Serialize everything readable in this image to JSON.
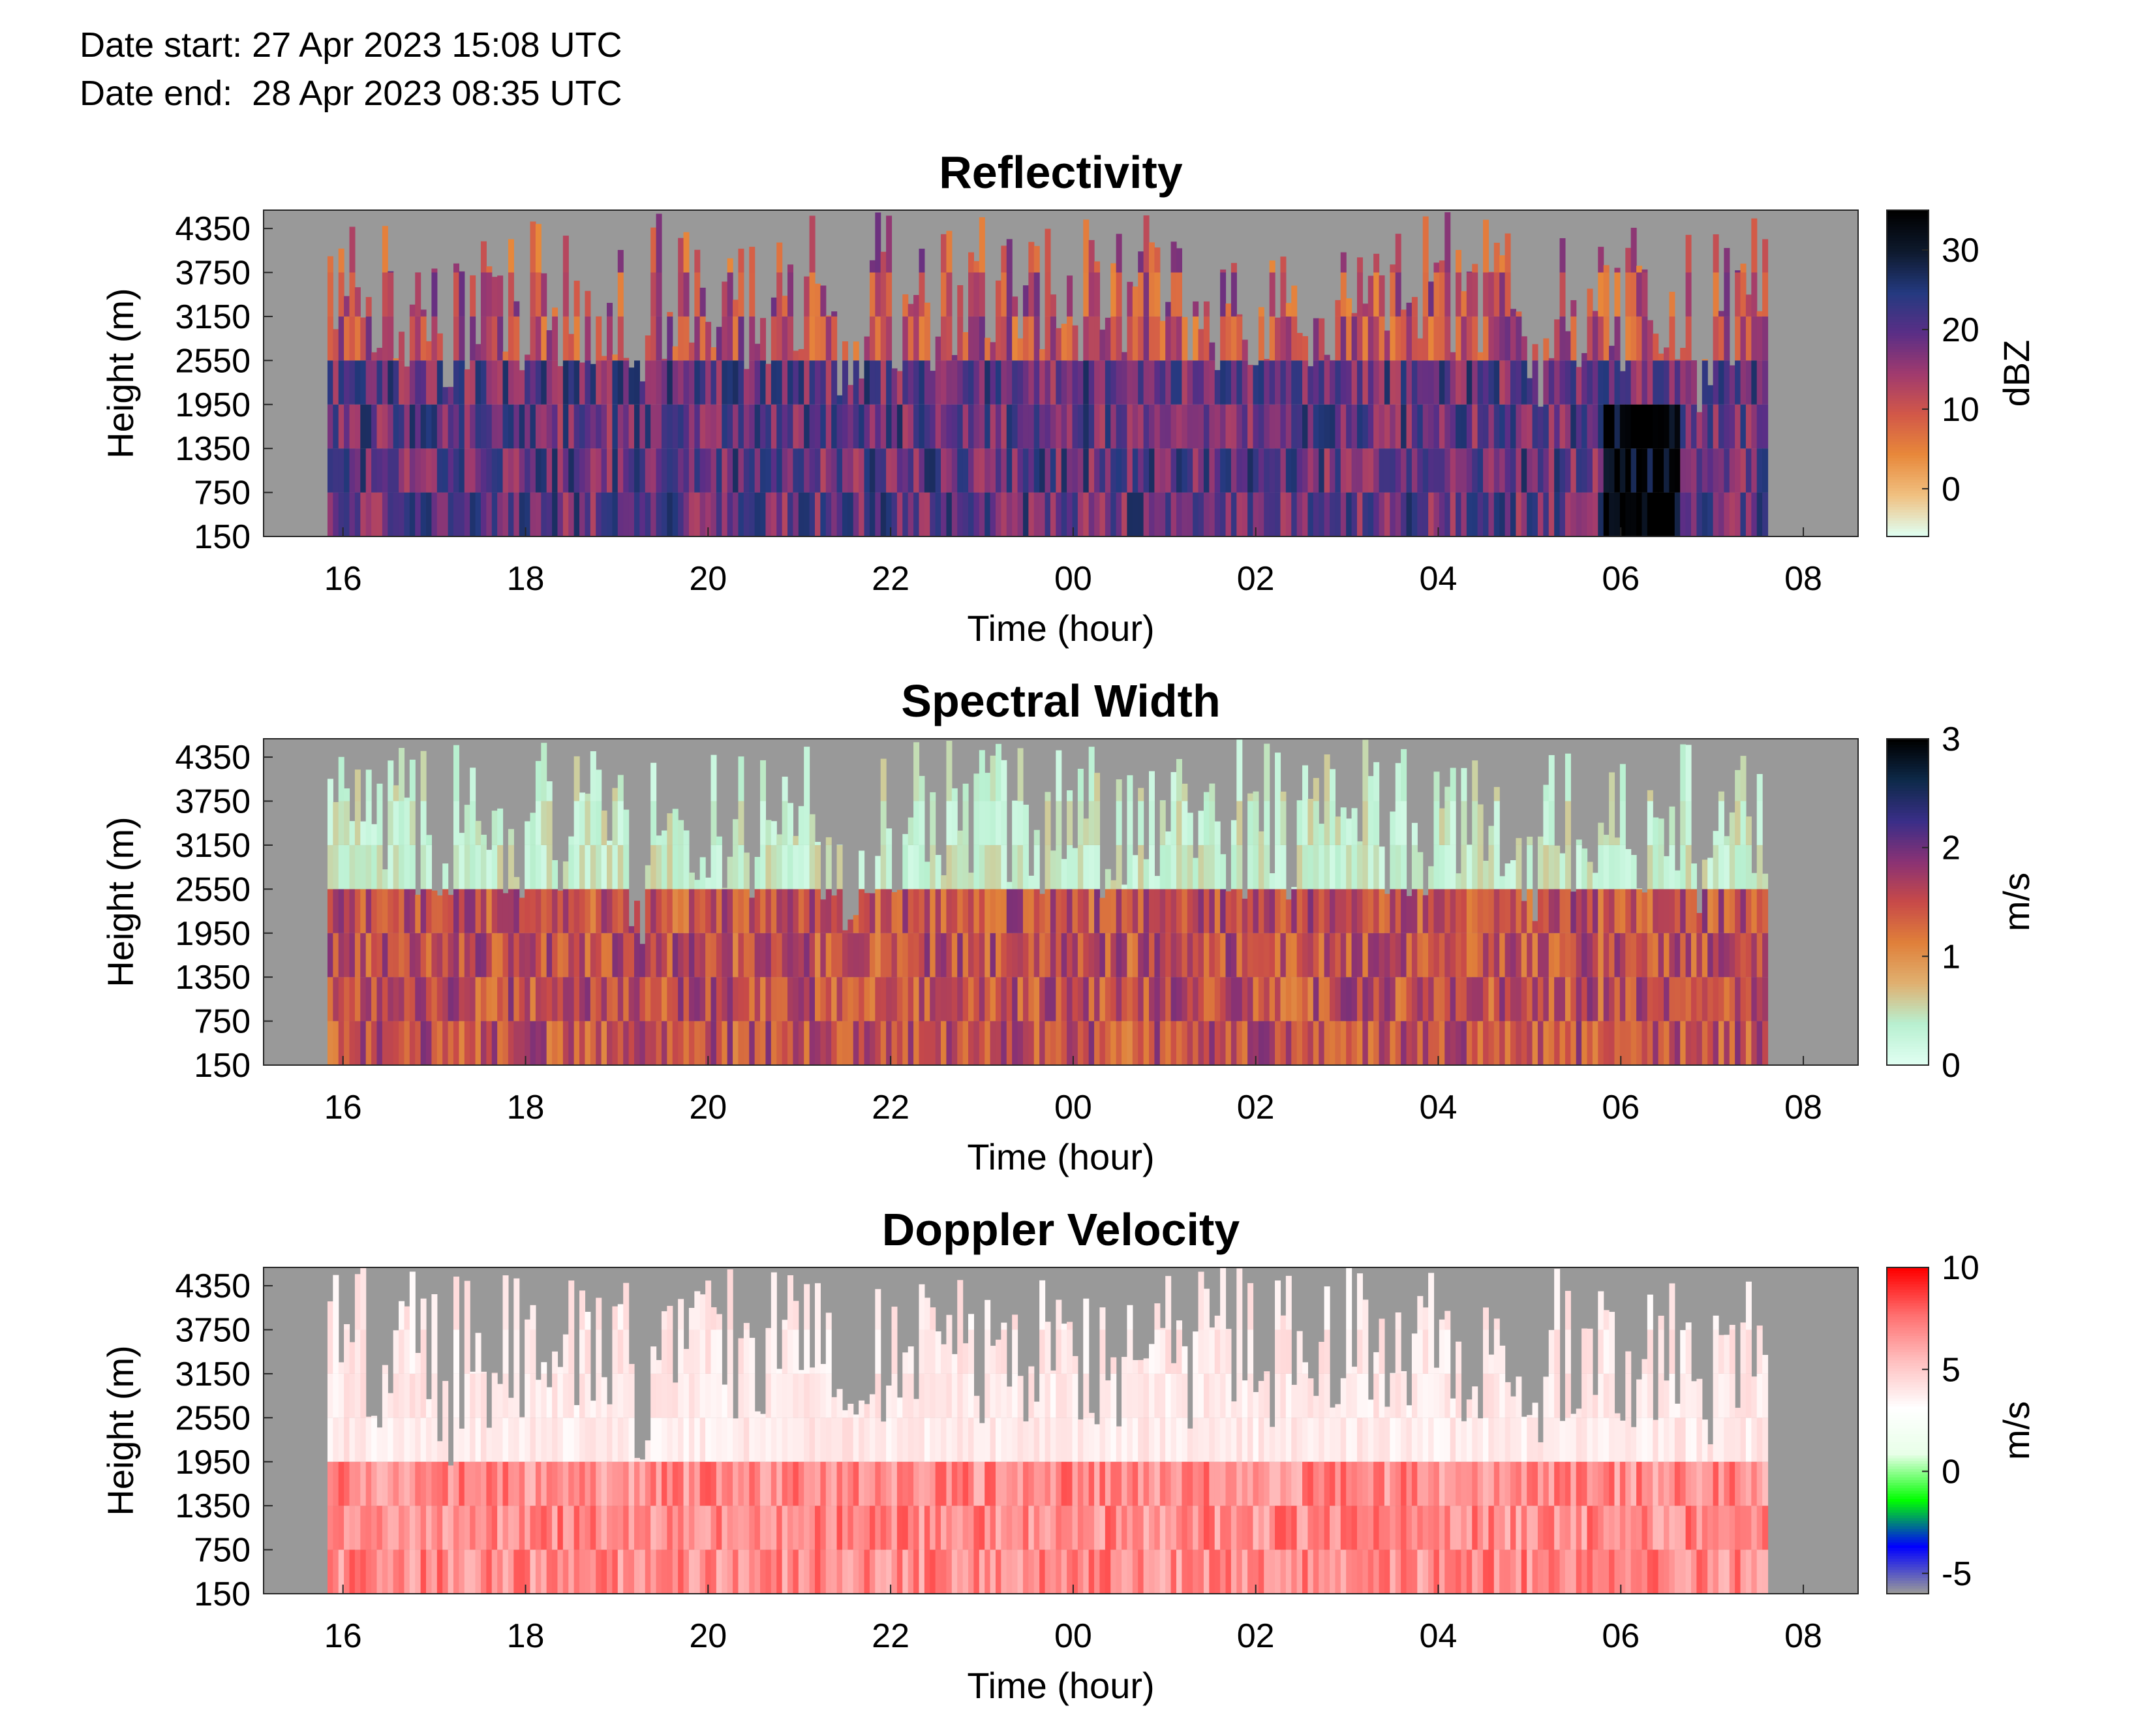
{
  "header": {
    "date_start": "Date start: 27 Apr 2023 15:08 UTC",
    "date_end": "Date end:  28 Apr 2023 08:35 UTC"
  },
  "colors": {
    "background": "#ffffff",
    "no_data": "#999999",
    "axis": "#262626"
  },
  "chart_data": [
    {
      "type": "heatmap",
      "title": "Reflectivity",
      "xlabel": "Time (hour)",
      "ylabel": "Height (m)",
      "colorbar_label": "dBZ",
      "x_ticks": [
        "16",
        "18",
        "20",
        "22",
        "00",
        "02",
        "04",
        "06",
        "08"
      ],
      "y_ticks": [
        "150",
        "750",
        "1350",
        "1950",
        "2550",
        "3150",
        "3750",
        "4350"
      ],
      "colorbar_ticks": [
        "0",
        "10",
        "20",
        "30"
      ],
      "colorbar_range": [
        -6,
        35
      ],
      "colormap": [
        "#e0fff2",
        "#f0c080",
        "#e8883a",
        "#d25848",
        "#a03a6e",
        "#5a2e86",
        "#243a80",
        "#0e1a2e",
        "#000000"
      ],
      "x_range_hours": [
        15.13,
        32.6
      ],
      "y_range_m": [
        150,
        4600
      ],
      "data_extent_hours": [
        15.83,
        31.58
      ],
      "grid": false
    },
    {
      "type": "heatmap",
      "title": "Spectral Width",
      "xlabel": "Time (hour)",
      "ylabel": "Height (m)",
      "colorbar_label": "m/s",
      "x_ticks": [
        "16",
        "18",
        "20",
        "22",
        "00",
        "02",
        "04",
        "06",
        "08"
      ],
      "y_ticks": [
        "150",
        "750",
        "1350",
        "1950",
        "2550",
        "3150",
        "3750",
        "4350"
      ],
      "colorbar_ticks": [
        "0",
        "1",
        "2",
        "3"
      ],
      "colorbar_range": [
        0,
        3
      ],
      "colormap": [
        "#e0fff2",
        "#b8f0d0",
        "#e0b070",
        "#e0803a",
        "#c84a48",
        "#8a3274",
        "#3a2e88",
        "#0e2a4a",
        "#000000"
      ],
      "x_range_hours": [
        15.13,
        32.6
      ],
      "y_range_m": [
        150,
        4600
      ],
      "data_extent_hours": [
        15.83,
        31.58
      ],
      "grid": false
    },
    {
      "type": "heatmap",
      "title": "Doppler Velocity",
      "xlabel": "Time (hour)",
      "ylabel": "Height (m)",
      "colorbar_label": "m/s",
      "x_ticks": [
        "16",
        "18",
        "20",
        "22",
        "00",
        "02",
        "04",
        "06",
        "08"
      ],
      "y_ticks": [
        "150",
        "750",
        "1350",
        "1950",
        "2550",
        "3150",
        "3750",
        "4350"
      ],
      "colorbar_ticks": [
        "-5",
        "0",
        "5",
        "10"
      ],
      "colorbar_range": [
        -6,
        10
      ],
      "colormap": [
        "#999999",
        "#0000ff",
        "#00ff00",
        "#e8ffe8",
        "#ffffff",
        "#ffc0c0",
        "#ff7070",
        "#ff0000"
      ],
      "x_range_hours": [
        15.13,
        32.6
      ],
      "y_range_m": [
        150,
        4600
      ],
      "data_extent_hours": [
        15.83,
        31.58
      ],
      "grid": false
    }
  ]
}
